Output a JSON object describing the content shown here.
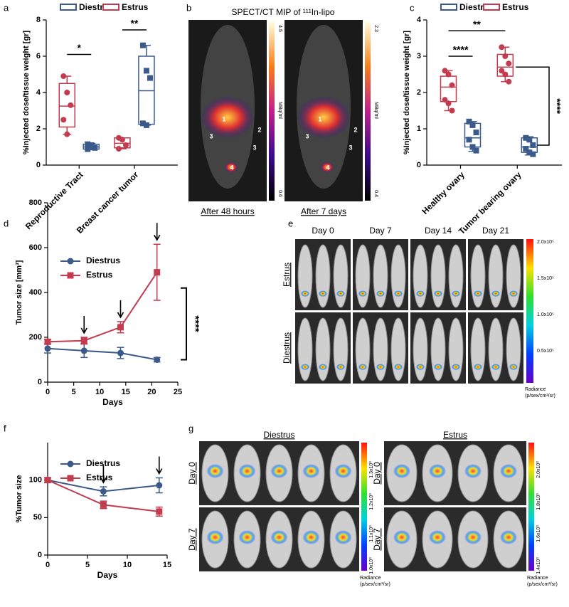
{
  "chart_data": [
    {
      "type": "box",
      "legend": "top",
      "ylabel": "%Injected dose/tissue weight [gr]",
      "categories": [
        "Reproductive Tract",
        "Breast cancer tumor"
      ],
      "ylim": [
        0,
        8
      ],
      "yticks": [
        0,
        2,
        4,
        6,
        8
      ],
      "series": [
        {
          "name": "Diestrus",
          "color": "#3b5a8a",
          "marker": "square",
          "boxes": [
            {
              "min": 0.85,
              "q1": 0.88,
              "median": 1.0,
              "q3": 1.15,
              "max": 1.2,
              "points": [
                1.15,
                1.0,
                0.95,
                0.88,
                1.1
              ]
            },
            {
              "min": 2.2,
              "q1": 2.25,
              "median": 4.1,
              "q3": 6.0,
              "max": 6.6,
              "points": [
                6.6,
                5.2,
                4.8,
                2.3,
                2.2
              ]
            }
          ]
        },
        {
          "name": "Estrus",
          "color": "#c23b4e",
          "marker": "circle",
          "boxes": [
            {
              "min": 1.7,
              "q1": 2.1,
              "median": 3.25,
              "q3": 4.5,
              "max": 4.9,
              "points": [
                4.9,
                4.0,
                3.3,
                2.5,
                1.7
              ]
            },
            {
              "min": 0.9,
              "q1": 0.95,
              "median": 1.2,
              "q3": 1.5,
              "max": 1.5,
              "points": [
                1.5,
                1.4,
                1.1,
                0.9
              ]
            }
          ]
        }
      ],
      "annotations": [
        "*",
        "**"
      ]
    },
    {
      "type": "box",
      "legend": "top",
      "ylabel": "%Injected dose/tissue weight [gr]",
      "categories": [
        "Healthy ovary",
        "Tumor bearing ovary"
      ],
      "ylim": [
        0,
        4
      ],
      "yticks": [
        0,
        1,
        2,
        3,
        4
      ],
      "series": [
        {
          "name": "Diestrus",
          "color": "#3b5a8a",
          "marker": "square",
          "boxes": [
            {
              "min": 0.38,
              "q1": 0.5,
              "median": 0.75,
              "q3": 1.15,
              "max": 1.2,
              "points": [
                1.2,
                1.1,
                0.9,
                0.7,
                0.5,
                0.4
              ]
            },
            {
              "min": 0.28,
              "q1": 0.35,
              "median": 0.5,
              "q3": 0.75,
              "max": 0.78,
              "points": [
                0.75,
                0.7,
                0.55,
                0.45,
                0.35,
                0.3
              ]
            }
          ]
        },
        {
          "name": "Estrus",
          "color": "#c23b4e",
          "marker": "circle",
          "boxes": [
            {
              "min": 1.5,
              "q1": 1.75,
              "median": 2.15,
              "q3": 2.45,
              "max": 2.6,
              "points": [
                2.6,
                2.5,
                2.2,
                1.8,
                1.7,
                1.5
              ]
            },
            {
              "min": 2.3,
              "q1": 2.45,
              "median": 2.7,
              "q3": 3.05,
              "max": 3.25,
              "points": [
                3.25,
                3.0,
                2.8,
                2.6,
                2.5,
                2.3
              ]
            }
          ]
        }
      ],
      "annotations": [
        "****",
        "**",
        "****"
      ]
    },
    {
      "type": "line",
      "legend": "upper left",
      "xlabel": "Days",
      "ylabel": "Tumor size [mm³]",
      "x": [
        0,
        7,
        14,
        21
      ],
      "xlim": [
        0,
        25
      ],
      "xticks": [
        0,
        5,
        10,
        15,
        20,
        25
      ],
      "ylim": [
        0,
        800
      ],
      "yticks": [
        0,
        200,
        400,
        600,
        800
      ],
      "series": [
        {
          "name": "Diestrus",
          "color": "#3b5a8a",
          "marker": "circle",
          "values": [
            150,
            140,
            130,
            100
          ],
          "errors": [
            20,
            30,
            25,
            10
          ]
        },
        {
          "name": "Estrus",
          "color": "#c23b4e",
          "marker": "square",
          "values": [
            180,
            185,
            245,
            490
          ],
          "errors": [
            10,
            15,
            25,
            125
          ]
        }
      ],
      "annotations": [
        "****"
      ]
    },
    {
      "type": "line",
      "legend": "upper left",
      "xlabel": "Days",
      "ylabel": "%Tumor size",
      "x": [
        0,
        7,
        14
      ],
      "xlim": [
        0,
        15
      ],
      "xticks": [
        0,
        5,
        10,
        15
      ],
      "ylim": [
        0,
        150
      ],
      "yticks": [
        0,
        50,
        100
      ],
      "series": [
        {
          "name": "Diestrus",
          "color": "#3b5a8a",
          "marker": "circle",
          "values": [
            100,
            85,
            93
          ],
          "errors": [
            3,
            6,
            10
          ]
        },
        {
          "name": "Estrus",
          "color": "#c23b4e",
          "marker": "square",
          "values": [
            100,
            67,
            58
          ],
          "errors": [
            3,
            5,
            6
          ]
        }
      ],
      "annotations": []
    }
  ],
  "panel_letters": [
    "a",
    "b",
    "c",
    "d",
    "e",
    "f",
    "g"
  ],
  "spect": {
    "title": "SPECT/CT MIP of ¹¹¹In-lipo",
    "captions": [
      "After 48 hours",
      "After 7 days"
    ],
    "scales": [
      [
        "4.5",
        "0.6"
      ],
      [
        "2.3",
        "0.4"
      ]
    ],
    "unit": "MBq/ml",
    "organ_labels": [
      "1",
      "2",
      "3",
      "4"
    ]
  },
  "bli_e": {
    "days": [
      "Day 0",
      "Day 7",
      "Day 14",
      "Day 21"
    ],
    "groups": [
      "Estrus",
      "Diestrus"
    ],
    "scale": [
      "2.0x10⁵",
      "1.5x10⁵",
      "1.0x10⁵",
      "0.5x10⁵"
    ],
    "radiance": [
      "Radiance",
      "(p/sex/cm²/sr)"
    ]
  },
  "bli_g": {
    "groups": [
      "Diestrus",
      "Estrus"
    ],
    "days": [
      "Day 0",
      "Day 7"
    ],
    "scales": [
      [
        "1.3x10³",
        "1.2x10³",
        "1.1x10³",
        "1.0x10³"
      ],
      [
        "2.0x10³",
        "1.8x10³",
        "1.6x10³",
        "1.4x10³"
      ]
    ],
    "radiance": [
      "Radiance",
      "(p/sex/cm²/sr)"
    ]
  }
}
